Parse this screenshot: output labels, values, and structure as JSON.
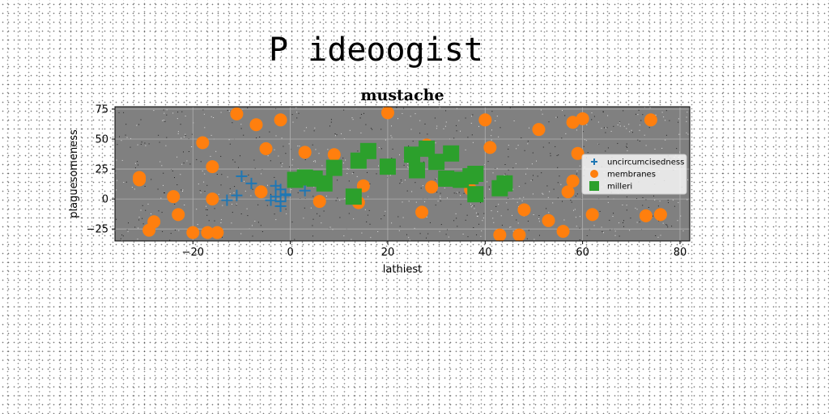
{
  "suptitle": "P ideoogist",
  "chart_data": {
    "type": "scatter",
    "title": "mustache",
    "xlabel": "lathiest",
    "ylabel": "plaguesomeness",
    "xlim": [
      -36,
      82
    ],
    "ylim": [
      -35,
      77
    ],
    "xticks": [
      -20,
      0,
      20,
      40,
      60,
      80
    ],
    "xtick_labels": [
      "−20",
      "0",
      "20",
      "40",
      "60",
      "80"
    ],
    "yticks": [
      -25,
      0,
      25,
      50,
      75
    ],
    "ytick_labels": [
      "−25",
      "0",
      "25",
      "50",
      "75"
    ],
    "grid": true,
    "legend_position": "right",
    "plot_background": "#808080",
    "series": [
      {
        "name": "uncircumcisedness",
        "marker": "plus",
        "color": "#1f77b4",
        "points": [
          [
            -13,
            -1
          ],
          [
            -11,
            3
          ],
          [
            -10,
            19
          ],
          [
            -8,
            13
          ],
          [
            -3,
            2
          ],
          [
            -3,
            11
          ],
          [
            -2,
            -2
          ],
          [
            -1,
            4
          ],
          [
            -2,
            -6
          ],
          [
            3,
            7
          ],
          [
            -1,
            3
          ],
          [
            -4,
            -1
          ],
          [
            -2,
            8
          ]
        ]
      },
      {
        "name": "membranes",
        "marker": "circle",
        "color": "#ff7f0e",
        "points": [
          [
            -31,
            18
          ],
          [
            -31,
            16
          ],
          [
            -29,
            -26
          ],
          [
            -28,
            -19
          ],
          [
            -24,
            2
          ],
          [
            -23,
            -13
          ],
          [
            -20,
            -28
          ],
          [
            -18,
            47
          ],
          [
            -17,
            -28
          ],
          [
            -16,
            27
          ],
          [
            -16,
            0
          ],
          [
            -15,
            -28
          ],
          [
            -11,
            71
          ],
          [
            -7,
            62
          ],
          [
            -6,
            6
          ],
          [
            -5,
            42
          ],
          [
            -2,
            66
          ],
          [
            3,
            39
          ],
          [
            6,
            -2
          ],
          [
            9,
            37
          ],
          [
            14,
            -3
          ],
          [
            15,
            11
          ],
          [
            20,
            72
          ],
          [
            27,
            -11
          ],
          [
            28,
            45
          ],
          [
            29,
            10
          ],
          [
            37,
            8
          ],
          [
            40,
            66
          ],
          [
            41,
            43
          ],
          [
            43,
            -30
          ],
          [
            47,
            -30
          ],
          [
            48,
            -9
          ],
          [
            51,
            58
          ],
          [
            53,
            -18
          ],
          [
            56,
            -27
          ],
          [
            57,
            6
          ],
          [
            58,
            15
          ],
          [
            58,
            64
          ],
          [
            59,
            38
          ],
          [
            60,
            67
          ],
          [
            62,
            -13
          ],
          [
            73,
            -14
          ],
          [
            74,
            66
          ],
          [
            76,
            -13
          ]
        ]
      },
      {
        "name": "milleri",
        "marker": "square",
        "color": "#2ca02c",
        "points": [
          [
            1,
            16
          ],
          [
            3,
            18
          ],
          [
            5,
            17
          ],
          [
            7,
            13
          ],
          [
            9,
            26
          ],
          [
            13,
            2
          ],
          [
            14,
            32
          ],
          [
            16,
            40
          ],
          [
            20,
            27
          ],
          [
            25,
            37
          ],
          [
            26,
            24
          ],
          [
            28,
            42
          ],
          [
            30,
            31
          ],
          [
            32,
            17
          ],
          [
            33,
            38
          ],
          [
            35,
            16
          ],
          [
            37,
            19
          ],
          [
            38,
            4
          ],
          [
            38,
            21
          ],
          [
            43,
            9
          ],
          [
            44,
            13
          ]
        ]
      }
    ]
  }
}
